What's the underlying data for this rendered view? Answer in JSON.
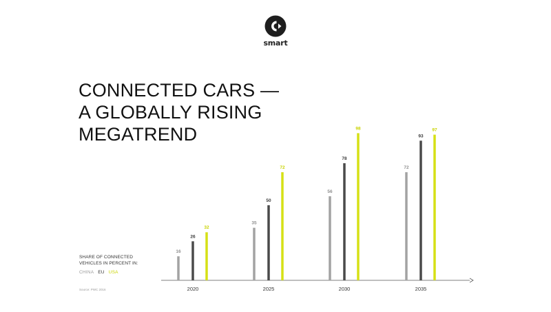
{
  "brand": {
    "name": "smart",
    "logo_icon": "smart-logo-icon"
  },
  "headline": [
    "CONNECTED CARS —",
    "A GLOBALLY RISING",
    "MEGATREND"
  ],
  "subtitle": [
    "SHARE OF CONNECTED",
    "VEHICLES IN PERCENT IN:"
  ],
  "source": "Source: PWC 2016",
  "colors": {
    "china": "#a3a3a3",
    "eu": "#4a4a4a",
    "usa": "#d6e015",
    "axis": "#555555",
    "usa_label": "#c9d300"
  },
  "chart_data": {
    "type": "bar",
    "categories": [
      "2020",
      "2025",
      "2030",
      "2035"
    ],
    "series": [
      {
        "name": "CHINA",
        "values": [
          16,
          35,
          56,
          72
        ]
      },
      {
        "name": "EU",
        "values": [
          26,
          50,
          78,
          93
        ]
      },
      {
        "name": "USA",
        "values": [
          32,
          72,
          98,
          97
        ]
      }
    ],
    "ylim": [
      0,
      100
    ],
    "grid": false,
    "legend": "bottom-left",
    "data_labels": true
  }
}
